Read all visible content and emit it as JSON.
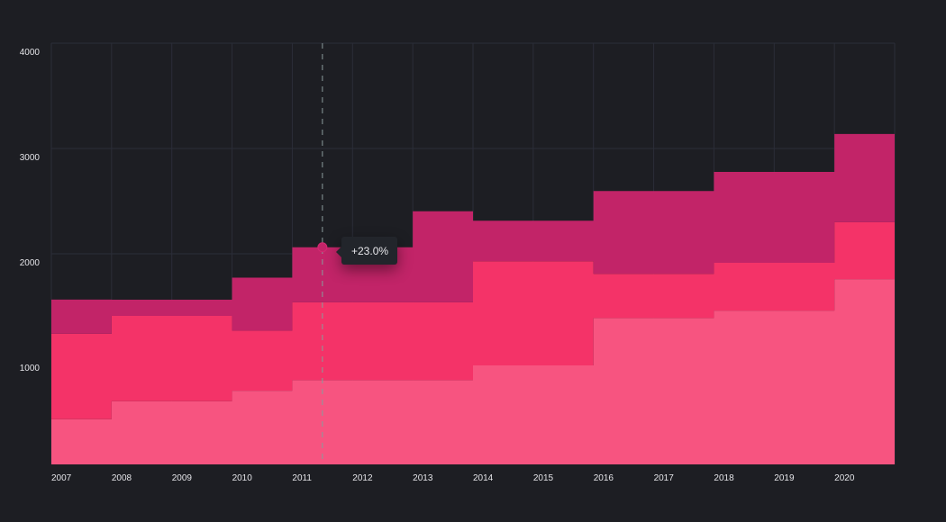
{
  "chart_data": {
    "type": "area",
    "stacked": true,
    "step": true,
    "categories": [
      "2007",
      "2008",
      "2009",
      "2010",
      "2011",
      "2012",
      "2013",
      "2014",
      "2015",
      "2016",
      "2017",
      "2018",
      "2019",
      "2020"
    ],
    "series": [
      {
        "values": [
          430,
          600,
          600,
          700,
          800,
          800,
          800,
          940,
          940,
          1390,
          1390,
          1460,
          1460,
          1760
        ],
        "color": "#f75480"
      },
      {
        "values": [
          810,
          810,
          810,
          570,
          740,
          740,
          740,
          990,
          990,
          420,
          420,
          455,
          455,
          540
        ],
        "color": "#f43368"
      },
      {
        "values": [
          325,
          154,
          154,
          504,
          522,
          522,
          864,
          384,
          384,
          786,
          786,
          863,
          863,
          838
        ],
        "color": "#c22468"
      }
    ],
    "ylim": [
      0,
      4000
    ],
    "yticks": [
      "1000",
      "2000",
      "3000",
      "4000"
    ],
    "grid": true,
    "background": "#1d1e23",
    "tooltip": {
      "category": "2011",
      "text": "+23.0%"
    }
  }
}
